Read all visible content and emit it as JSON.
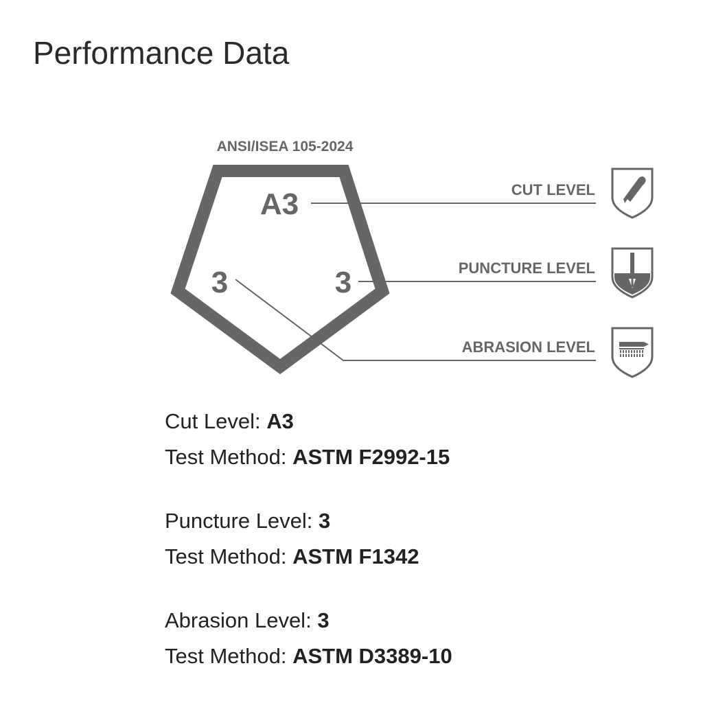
{
  "header": {
    "title": "Performance Data"
  },
  "diagram": {
    "standard": "ANSI/ISEA 105-2024",
    "cut_value": "A3",
    "puncture_value": "3",
    "abrasion_value": "3",
    "cut_label": "CUT LEVEL",
    "puncture_label": "PUNCTURE LEVEL",
    "abrasion_label": "ABRASION LEVEL",
    "icons": [
      "cut-knife-shield-icon",
      "puncture-needle-shield-icon",
      "abrasion-brush-shield-icon"
    ],
    "color": "#666666"
  },
  "specs": [
    {
      "level_label": "Cut Level: ",
      "level_value": "A3",
      "method_label": "Test Method: ",
      "method_value": "ASTM F2992-15"
    },
    {
      "level_label": "Puncture Level: ",
      "level_value": "3",
      "method_label": "Test Method: ",
      "method_value": "ASTM F1342"
    },
    {
      "level_label": "Abrasion Level: ",
      "level_value": "3",
      "method_label": "Test Method: ",
      "method_value": "ASTM D3389-10"
    }
  ]
}
